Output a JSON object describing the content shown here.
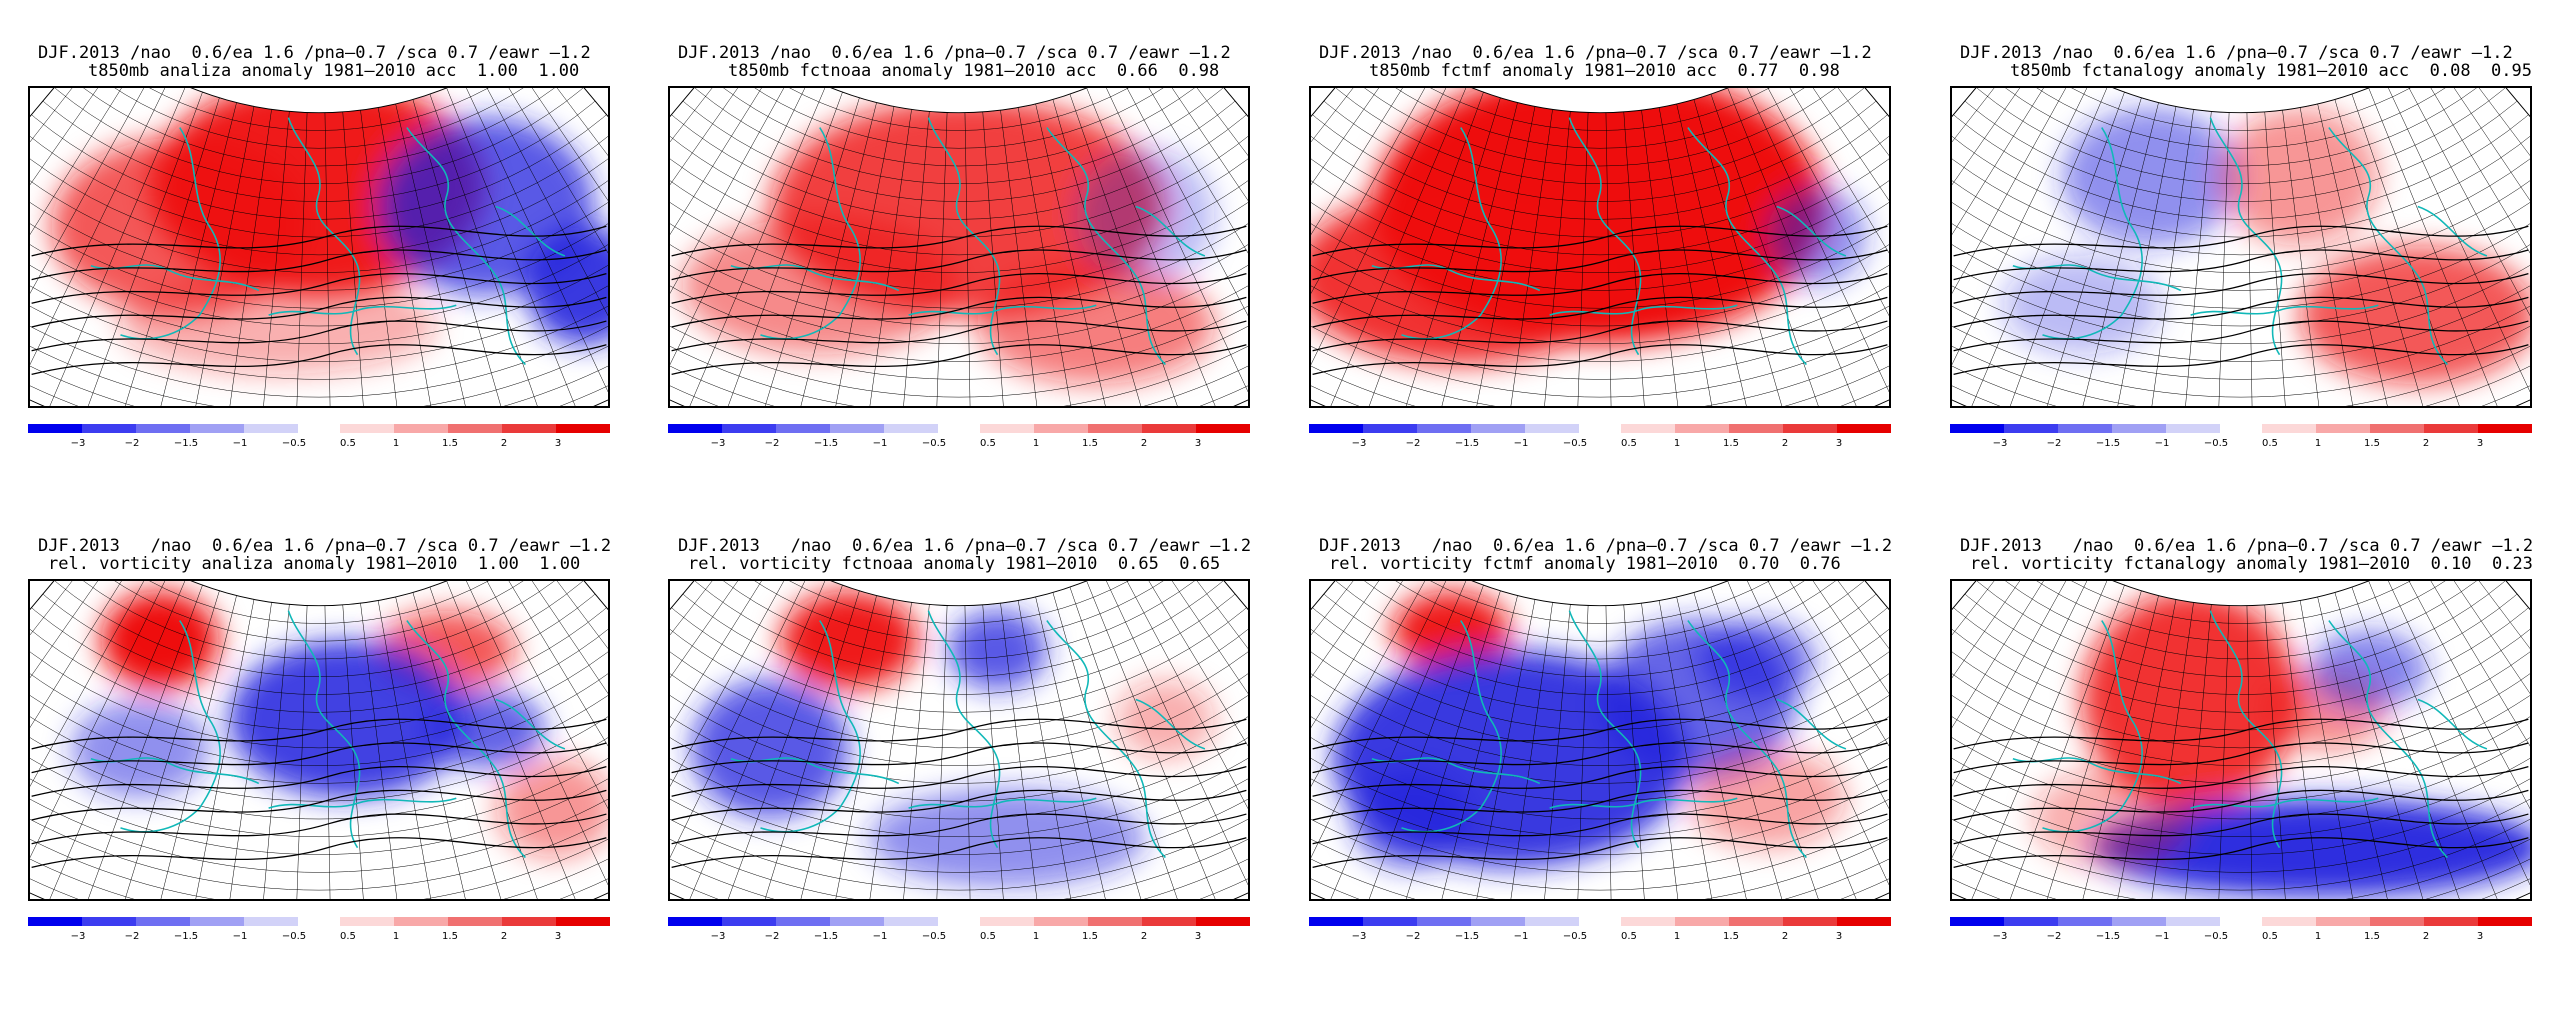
{
  "panels": [
    {
      "title1": "DJF.2013 /nao  0.6/ea 1.6 /pna–0.7 /sca 0.7 /eawr –1.2",
      "title2": "t850mb analiza anomaly 1981–2010 acc  1.00  1.00",
      "title2_indent": "true"
    },
    {
      "title1": "DJF.2013 /nao  0.6/ea 1.6 /pna–0.7 /sca 0.7 /eawr –1.2",
      "title2": "t850mb fctnoaa anomaly 1981–2010 acc  0.66  0.98",
      "title2_indent": "true"
    },
    {
      "title1": "DJF.2013 /nao  0.6/ea 1.6 /pna–0.7 /sca 0.7 /eawr –1.2",
      "title2": "t850mb fctmf anomaly 1981–2010 acc  0.77  0.98",
      "title2_indent": "true"
    },
    {
      "title1": "DJF.2013 /nao  0.6/ea 1.6 /pna–0.7 /sca 0.7 /eawr –1.2",
      "title2": "t850mb fctanalogy anomaly 1981–2010 acc  0.08  0.95",
      "title2_indent": "true"
    },
    {
      "title1": "DJF.2013   /nao  0.6/ea 1.6 /pna–0.7 /sca 0.7 /eawr –1.2",
      "title2": "rel. vorticity analiza anomaly 1981–2010  1.00  1.00",
      "title2_indent": "false"
    },
    {
      "title1": "DJF.2013   /nao  0.6/ea 1.6 /pna–0.7 /sca 0.7 /eawr –1.2",
      "title2": "rel. vorticity fctnoaa anomaly 1981–2010  0.65  0.65",
      "title2_indent": "false"
    },
    {
      "title1": "DJF.2013   /nao  0.6/ea 1.6 /pna–0.7 /sca 0.7 /eawr –1.2",
      "title2": "rel. vorticity fctmf anomaly 1981–2010  0.70  0.76",
      "title2_indent": "false"
    },
    {
      "title1": "DJF.2013   /nao  0.6/ea 1.6 /pna–0.7 /sca 0.7 /eawr –1.2",
      "title2": "rel. vorticity fctanalogy anomaly 1981–2010  0.10  0.23",
      "title2_indent": "false"
    }
  ],
  "colorbar": {
    "neg_labels": [
      "−3",
      "−2",
      "−1.5",
      "−1",
      "−0.5"
    ],
    "pos_labels": [
      "0.5",
      "1",
      "1.5",
      "2",
      "3"
    ],
    "neg_colors": [
      "#0000ee",
      "#3c3cf0",
      "#6e6ef2",
      "#a0a0f4",
      "#d2d2f8"
    ],
    "pos_colors": [
      "#fcd8d8",
      "#f8a8a8",
      "#f07070",
      "#ea3a3a",
      "#e60000"
    ]
  },
  "colors": {
    "warm": "#ee1111",
    "cold": "#2222dd",
    "coastline": "#10b8b8",
    "contour": "#000000"
  }
}
